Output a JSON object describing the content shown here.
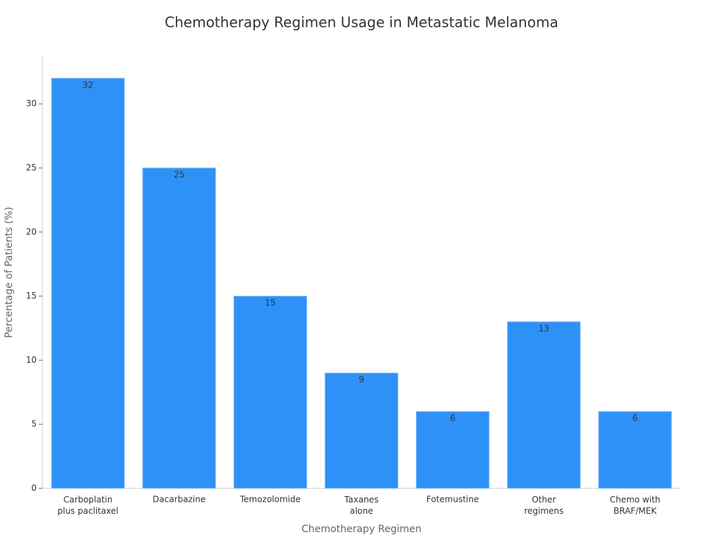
{
  "chart_data": {
    "type": "bar",
    "title": "Chemotherapy Regimen Usage in Metastatic Melanoma",
    "x_label": "Chemotherapy Regimen",
    "y_label": "Percentage of Patients (%)",
    "categories": [
      "Carboplatin\nplus paclitaxel",
      "Dacarbazine",
      "Temozolomide",
      "Taxanes\nalone",
      "Fotemustine",
      "Other\nregimens",
      "Chemo with\nBRAF/MEK"
    ],
    "values": [
      32,
      25,
      15,
      9,
      6,
      13,
      6
    ],
    "color": "#2e91f7",
    "ylim": [
      0,
      33.7
    ],
    "yticks": [
      0,
      5,
      10,
      15,
      20,
      25,
      30
    ]
  }
}
